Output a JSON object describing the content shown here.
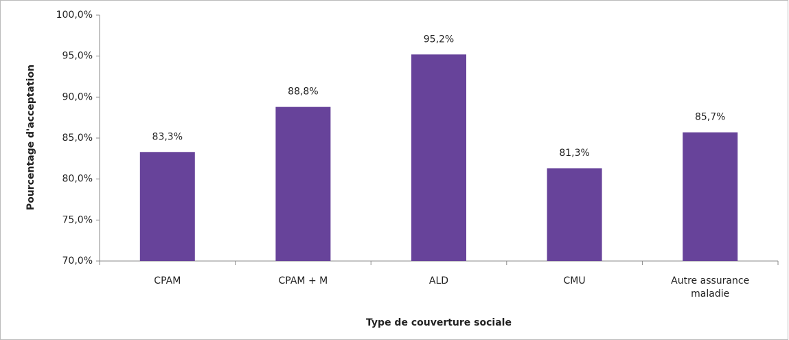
{
  "chart_data": {
    "type": "bar",
    "x_label": "Type de couverture sociale",
    "y_label": "Pourcentage d'acceptation",
    "categories": [
      "CPAM",
      "CPAM + M",
      "ALD",
      "CMU",
      "Autre assurance maladie"
    ],
    "values": [
      83.3,
      88.8,
      95.2,
      81.3,
      85.7
    ],
    "value_labels": [
      "83,3%",
      "88,8%",
      "95,2%",
      "81,3%",
      "85,7%"
    ],
    "color": "#67439a",
    "ylim": [
      70,
      100
    ],
    "yticks": [
      {
        "value": 70,
        "label": "70,0%"
      },
      {
        "value": 75,
        "label": "75,0%"
      },
      {
        "value": 80,
        "label": "80,0%"
      },
      {
        "value": 85,
        "label": "85,0%"
      },
      {
        "value": 90,
        "label": "90,0%"
      },
      {
        "value": 95,
        "label": "95,0%"
      },
      {
        "value": 100,
        "label": "100,0%"
      }
    ],
    "grid": false
  }
}
